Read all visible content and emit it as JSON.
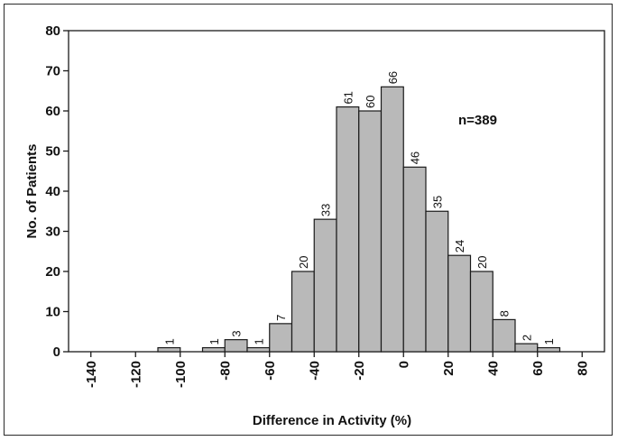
{
  "chart_data": {
    "type": "bar",
    "title": "",
    "xlabel": "Difference in Activity (%)",
    "ylabel": "No. of Patients",
    "annotation": "n=389",
    "xlim": [
      -150,
      90
    ],
    "ylim": [
      0,
      80
    ],
    "x_ticks": [
      "-140",
      "-120",
      "-100",
      "-80",
      "-60",
      "-40",
      "-20",
      "0",
      "20",
      "40",
      "60",
      "80"
    ],
    "y_ticks": [
      "0",
      "10",
      "20",
      "30",
      "40",
      "50",
      "60",
      "70",
      "80"
    ],
    "bin_width": 10,
    "bins": [
      {
        "from": -110,
        "to": -100,
        "value": 1,
        "label": "1"
      },
      {
        "from": -90,
        "to": -80,
        "value": 1,
        "label": "1"
      },
      {
        "from": -80,
        "to": -70,
        "value": 3,
        "label": "3"
      },
      {
        "from": -70,
        "to": -60,
        "value": 1,
        "label": "1"
      },
      {
        "from": -60,
        "to": -50,
        "value": 7,
        "label": "7"
      },
      {
        "from": -50,
        "to": -40,
        "value": 20,
        "label": "20"
      },
      {
        "from": -40,
        "to": -30,
        "value": 33,
        "label": "33"
      },
      {
        "from": -30,
        "to": -20,
        "value": 61,
        "label": "61"
      },
      {
        "from": -20,
        "to": -10,
        "value": 60,
        "label": "60"
      },
      {
        "from": -10,
        "to": 0,
        "value": 66,
        "label": "66"
      },
      {
        "from": 0,
        "to": 10,
        "value": 46,
        "label": "46"
      },
      {
        "from": 10,
        "to": 20,
        "value": 35,
        "label": "35"
      },
      {
        "from": 20,
        "to": 30,
        "value": 24,
        "label": "24"
      },
      {
        "from": 30,
        "to": 40,
        "value": 20,
        "label": "20"
      },
      {
        "from": 40,
        "to": 50,
        "value": 8,
        "label": "8"
      },
      {
        "from": 50,
        "to": 60,
        "value": 2,
        "label": "2"
      },
      {
        "from": 60,
        "to": 70,
        "value": 1,
        "label": "1"
      }
    ],
    "grid": false,
    "legend": "none"
  }
}
